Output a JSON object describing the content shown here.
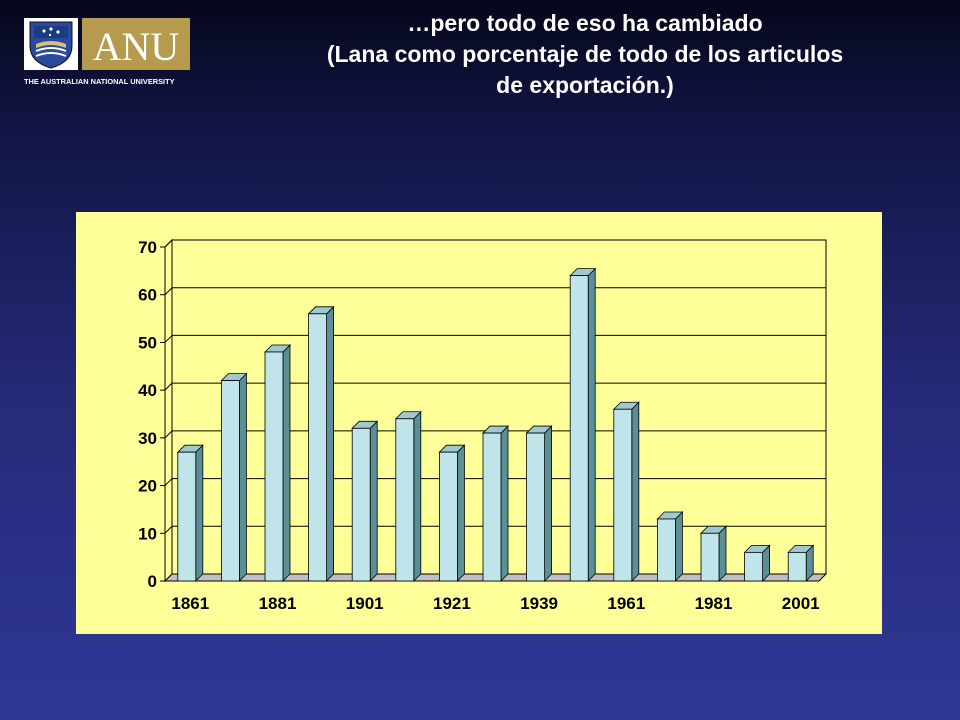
{
  "logo": {
    "wordmark": "ANU",
    "caption": "THE AUSTRALIAN NATIONAL UNIVERSITY"
  },
  "title": {
    "line1": "…pero todo de eso ha cambiado",
    "line2": "(Lana como porcentaje de todo de los articulos",
    "line3": "de exportación.)"
  },
  "colors": {
    "bar_front": "#bfe4ea",
    "bar_side": "#5a8f96",
    "bar_top": "#9fc9cf",
    "plot_background": "#ffff99",
    "grid": "#000000"
  },
  "chart_data": {
    "type": "bar",
    "style": "3d-column",
    "x_tick_labels": [
      "1861",
      "1881",
      "1901",
      "1921",
      "1939",
      "1961",
      "1981",
      "2001"
    ],
    "values": [
      27,
      42,
      48,
      56,
      32,
      34,
      27,
      31,
      31,
      64,
      36,
      13,
      10,
      6,
      6
    ],
    "ylim": [
      0,
      70
    ],
    "yticks": [
      0,
      10,
      20,
      30,
      40,
      50,
      60,
      70
    ],
    "grid": true,
    "legend": "none",
    "title": "",
    "xlabel": "",
    "ylabel": ""
  }
}
